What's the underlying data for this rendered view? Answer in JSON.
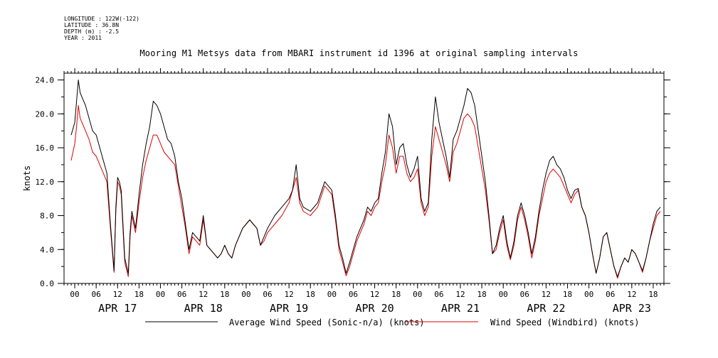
{
  "meta": {
    "lines": [
      "LONGITUDE : 122W(-122)",
      "LATITUDE : 36.8N",
      "DEPTH (m) : -2.5",
      "YEAR : 2011"
    ]
  },
  "chart_data": {
    "type": "line",
    "title": "Mooring M1 Metsys data from MBARI instrument id 1396 at original sampling intervals",
    "ylabel": "knots",
    "xlabel": "",
    "ylim": [
      0,
      24.8
    ],
    "yticks": [
      0.0,
      4.0,
      8.0,
      12.0,
      16.0,
      20.0,
      24.0
    ],
    "ytick_labels": [
      "0.0",
      "4.0",
      "8.0",
      "12.0",
      "16.0",
      "20.0",
      "24.0"
    ],
    "x_unit": "hours since APR 17 00:00",
    "xlim": [
      -3,
      165
    ],
    "hour_ticks": [
      0,
      6,
      12,
      18,
      24,
      30,
      36,
      42,
      48,
      54,
      60,
      66,
      72,
      78,
      84,
      90,
      96,
      102,
      108,
      114,
      120,
      126,
      132,
      138,
      144,
      150,
      156,
      162
    ],
    "hour_tick_labels": [
      "00",
      "06",
      "12",
      "18",
      "00",
      "06",
      "12",
      "18",
      "00",
      "06",
      "12",
      "18",
      "00",
      "06",
      "12",
      "18",
      "00",
      "06",
      "12",
      "18",
      "00",
      "06",
      "12",
      "18",
      "00",
      "06",
      "12",
      "18"
    ],
    "day_labels": [
      "APR 17",
      "APR 18",
      "APR 19",
      "APR 20",
      "APR 21",
      "APR 22",
      "APR 23"
    ],
    "day_label_hours": [
      12,
      36,
      60,
      84,
      108,
      132,
      156
    ],
    "colors": {
      "sonic": "#000000",
      "windbird": "#e00000"
    },
    "series": [
      {
        "name": "Average Wind Speed (Sonic-n/a) (knots)",
        "color": "#000000",
        "x": [
          -1,
          0,
          0.5,
          1,
          1.5,
          2,
          3,
          4,
          5,
          6,
          7,
          8,
          9,
          10,
          11,
          11.5,
          12,
          12.5,
          13,
          14,
          15,
          15.5,
          16,
          17,
          18,
          19,
          20,
          21,
          22,
          23,
          24,
          25,
          26,
          27,
          28,
          29,
          30,
          31,
          32,
          33,
          34,
          35,
          36,
          37,
          38,
          39,
          40,
          41,
          42,
          43,
          44,
          45,
          46,
          47,
          48,
          49,
          50,
          51,
          52,
          53,
          54,
          56,
          58,
          60,
          61,
          62,
          63,
          64,
          66,
          68,
          70,
          72,
          73,
          74,
          75,
          76,
          77,
          78,
          79,
          80,
          81,
          82,
          83,
          84,
          85,
          86,
          87,
          88,
          89,
          90,
          91,
          92,
          93,
          94,
          95,
          96,
          97,
          98,
          99,
          100,
          101,
          102,
          103,
          104,
          105,
          106,
          107,
          108,
          109,
          110,
          111,
          112,
          113,
          114,
          115,
          116,
          117,
          118,
          119,
          120,
          121,
          122,
          123,
          124,
          125,
          126,
          127,
          128,
          129,
          130,
          131,
          132,
          133,
          134,
          135,
          136,
          137,
          138,
          139,
          140,
          141,
          142,
          143,
          144,
          145,
          146,
          147,
          148,
          149,
          150,
          151,
          152,
          153,
          154,
          155,
          156,
          157,
          158,
          159,
          160,
          161,
          162,
          163,
          164
        ],
        "y": [
          17.5,
          19,
          21.5,
          24,
          22.5,
          22,
          21,
          19.5,
          18,
          17.5,
          16,
          14.5,
          13,
          7,
          1.5,
          9,
          12.5,
          12,
          11,
          3,
          1.2,
          6,
          8.5,
          6.5,
          10.5,
          14,
          16.5,
          18.5,
          21.5,
          21,
          20,
          18.5,
          17,
          16.5,
          15,
          12,
          10,
          7,
          4,
          6,
          5.5,
          5,
          8,
          4.5,
          4,
          3.5,
          3,
          3.5,
          4.5,
          3.5,
          3,
          4.5,
          5.5,
          6.5,
          7,
          7.5,
          7,
          6.5,
          4.5,
          5.5,
          6.5,
          8,
          9,
          10,
          11,
          14,
          10,
          9,
          8.5,
          9.5,
          12,
          11,
          8,
          4.5,
          3,
          1.2,
          2.5,
          4,
          5.5,
          6.5,
          7.5,
          9,
          8.5,
          9.5,
          10,
          13,
          15.5,
          20,
          18.5,
          14,
          16,
          16.5,
          14,
          12.5,
          13.5,
          15,
          10,
          8.5,
          9.5,
          17,
          22,
          19,
          17,
          15,
          12.5,
          17,
          18,
          19.5,
          21,
          23,
          22.5,
          21,
          18,
          15,
          12,
          8,
          3.5,
          4.5,
          6.5,
          8,
          5,
          3,
          5,
          8,
          9.5,
          8,
          6,
          3.5,
          5.5,
          8.5,
          11,
          13,
          14.5,
          15,
          14,
          13.5,
          12.5,
          11,
          10,
          11,
          11.2,
          9,
          8,
          6,
          3.5,
          1.2,
          3,
          5.5,
          6,
          4,
          2,
          0.8,
          2,
          3,
          2.5,
          4,
          3.5,
          2.5,
          1.5,
          3,
          5,
          7,
          8.5,
          9
        ]
      },
      {
        "name": "Wind Speed (Windbird) (knots)",
        "color": "#e00000",
        "x": [
          -1,
          0,
          0.5,
          1,
          1.5,
          2,
          3,
          4,
          5,
          6,
          7,
          8,
          9,
          10,
          11,
          11.5,
          12,
          12.5,
          13,
          14,
          15,
          15.5,
          16,
          17,
          18,
          19,
          20,
          21,
          22,
          23,
          24,
          25,
          26,
          27,
          28,
          29,
          30,
          31,
          32,
          33,
          34,
          35,
          36,
          37,
          38,
          39,
          40,
          41,
          42,
          43,
          44,
          45,
          46,
          47,
          48,
          49,
          50,
          51,
          52,
          53,
          54,
          56,
          58,
          60,
          61,
          62,
          63,
          64,
          66,
          68,
          70,
          72,
          73,
          74,
          75,
          76,
          77,
          78,
          79,
          80,
          81,
          82,
          83,
          84,
          85,
          86,
          87,
          88,
          89,
          90,
          91,
          92,
          93,
          94,
          95,
          96,
          97,
          98,
          99,
          100,
          101,
          102,
          103,
          104,
          105,
          106,
          107,
          108,
          109,
          110,
          111,
          112,
          113,
          114,
          115,
          116,
          117,
          118,
          119,
          120,
          121,
          122,
          123,
          124,
          125,
          126,
          127,
          128,
          129,
          130,
          131,
          132,
          133,
          134,
          135,
          136,
          137,
          138,
          139,
          140,
          141,
          142,
          143,
          144,
          145,
          146,
          147,
          148,
          149,
          150,
          151,
          152,
          153,
          154,
          155,
          156,
          157,
          158,
          159,
          160,
          161,
          162,
          163,
          164
        ],
        "y": [
          14.5,
          16.5,
          18.5,
          21,
          19.5,
          19,
          18,
          17,
          15.5,
          15,
          14,
          13,
          12,
          6.5,
          1.3,
          8.5,
          12,
          11.5,
          10.5,
          2.5,
          0.8,
          5.5,
          8,
          6,
          9.5,
          12.5,
          14.5,
          16,
          17.5,
          17.5,
          16.5,
          15.5,
          15,
          14.5,
          14,
          11.5,
          9,
          6.5,
          3.5,
          5.5,
          5,
          4.5,
          7.5,
          4.5,
          4,
          3.5,
          3,
          3.5,
          4.5,
          3.5,
          3,
          4.5,
          5.5,
          6.5,
          7,
          7.5,
          7,
          6.5,
          4.5,
          5,
          6,
          7,
          8,
          9.5,
          11,
          12.5,
          9.5,
          8.5,
          8,
          9,
          11.5,
          10.5,
          7.5,
          4,
          2.5,
          0.9,
          2,
          3.5,
          5,
          6,
          7,
          8.5,
          8,
          9,
          9.5,
          12,
          14,
          17.5,
          16,
          13,
          15,
          15,
          13,
          12,
          12.5,
          13.5,
          9.5,
          8,
          9,
          15,
          18.5,
          17,
          15.5,
          14,
          12,
          15.5,
          16.5,
          18,
          19.5,
          20,
          19.5,
          18.5,
          16,
          13.5,
          11,
          7.5,
          3.5,
          4,
          6,
          7.5,
          4.5,
          2.8,
          4.5,
          7.5,
          9,
          7.5,
          5.5,
          3,
          5,
          8,
          10,
          12,
          13,
          13.5,
          13,
          12.5,
          11.5,
          10.5,
          9.5,
          10.5,
          11,
          9,
          8,
          6,
          3.5,
          1.2,
          3,
          5.5,
          6,
          4,
          2,
          0.6,
          2,
          3,
          2.5,
          4,
          3.5,
          2.5,
          1.3,
          3,
          5,
          6.5,
          8,
          8.5
        ]
      }
    ],
    "gaps": [
      [
        56,
        72
      ]
    ],
    "grid": false,
    "legend_position": "bottom"
  }
}
